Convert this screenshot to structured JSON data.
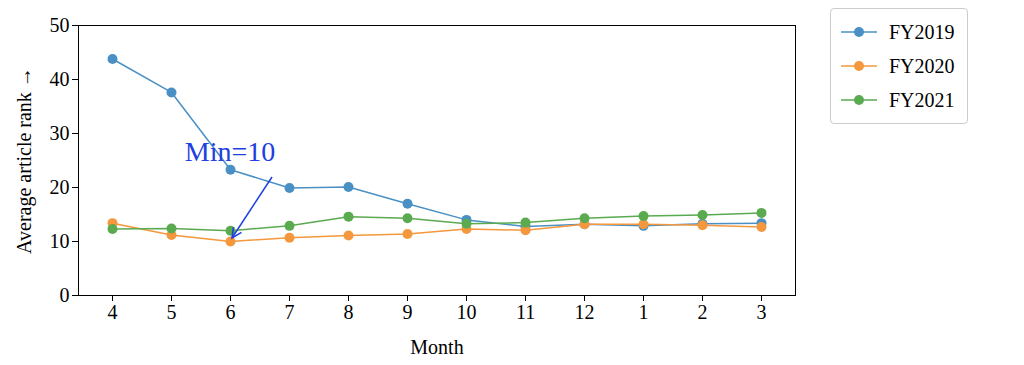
{
  "chart_data": {
    "type": "line",
    "x_label": "Month",
    "y_label": "Average article rank",
    "categories": [
      "4",
      "5",
      "6",
      "7",
      "8",
      "9",
      "10",
      "11",
      "12",
      "1",
      "2",
      "3"
    ],
    "series": [
      {
        "name": "FY2019",
        "color": "#4a90c4",
        "marker": "circle",
        "values": [
          43.8,
          37.6,
          23.3,
          19.9,
          20.1,
          17.0,
          14.0,
          12.8,
          13.2,
          12.9,
          13.3,
          13.4
        ]
      },
      {
        "name": "FY2020",
        "color": "#f5973c",
        "marker": "circle",
        "values": [
          13.4,
          11.2,
          10.0,
          10.7,
          11.1,
          11.4,
          12.3,
          12.1,
          13.2,
          13.2,
          13.0,
          12.7
        ]
      },
      {
        "name": "FY2021",
        "color": "#5aaa50",
        "marker": "circle",
        "values": [
          12.3,
          12.4,
          12.0,
          12.9,
          14.6,
          14.3,
          13.3,
          13.5,
          14.3,
          14.7,
          14.9,
          15.3
        ]
      }
    ],
    "ylim": [
      0,
      50
    ],
    "yticks": [
      0,
      10,
      20,
      30,
      40,
      50
    ],
    "grid": false,
    "legend": "right",
    "annotations": [
      {
        "text": "Min=10",
        "x": "6",
        "y": 10,
        "color": "#1f40e0"
      }
    ]
  }
}
